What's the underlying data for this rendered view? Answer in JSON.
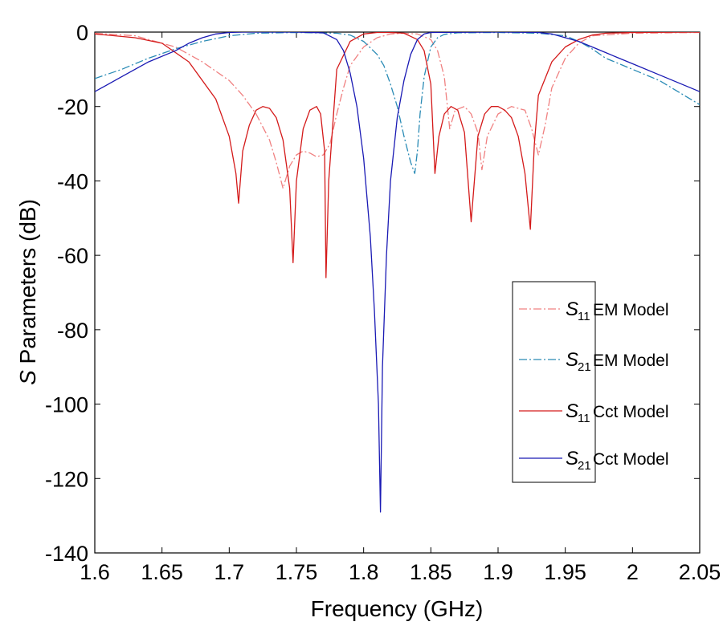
{
  "chart_data": {
    "type": "line",
    "title": "",
    "xlabel": "Frequency (GHz)",
    "ylabel_symbol": "S",
    "ylabel_rest": " Parameters (dB)",
    "xlim": [
      1.6,
      2.05
    ],
    "ylim": [
      -140,
      0
    ],
    "xticks": [
      1.6,
      1.65,
      1.7,
      1.75,
      1.8,
      1.85,
      1.9,
      1.95,
      2,
      2.05
    ],
    "xtick_labels": [
      "1.6",
      "1.65",
      "1.7",
      "1.75",
      "1.8",
      "1.85",
      "1.9",
      "1.95",
      "2",
      "2.05"
    ],
    "yticks": [
      0,
      -20,
      -40,
      -60,
      -80,
      -100,
      -120,
      -140
    ],
    "ytick_labels": [
      "0",
      "-20",
      "-40",
      "-60",
      "-80",
      "-100",
      "-120",
      "-140"
    ],
    "grid": false,
    "legend_position": "right",
    "series": [
      {
        "name": "S11 EM Model",
        "sym": "S",
        "sub": "11",
        "label": "EM Model",
        "color": "#f08080",
        "dash": "10,3,2,3",
        "x": [
          1.6,
          1.63,
          1.66,
          1.68,
          1.7,
          1.71,
          1.72,
          1.73,
          1.735,
          1.74,
          1.745,
          1.75,
          1.755,
          1.76,
          1.765,
          1.77,
          1.775,
          1.78,
          1.785,
          1.79,
          1.8,
          1.81,
          1.82,
          1.83,
          1.84,
          1.85,
          1.855,
          1.86,
          1.864,
          1.868,
          1.875,
          1.88,
          1.885,
          1.888,
          1.892,
          1.9,
          1.91,
          1.92,
          1.925,
          1.93,
          1.935,
          1.94,
          1.95,
          1.96,
          1.97,
          2.0,
          2.05
        ],
        "y": [
          -0.3,
          -1,
          -4,
          -8,
          -13,
          -17,
          -22,
          -29,
          -35,
          -42,
          -36,
          -33,
          -32,
          -32.5,
          -33.5,
          -33,
          -30,
          -22,
          -15,
          -9,
          -4,
          -1.5,
          -0.5,
          -0.3,
          -0.5,
          -2,
          -5,
          -12,
          -26,
          -21,
          -20,
          -22,
          -27,
          -37,
          -28,
          -22,
          -20,
          -21,
          -26,
          -33,
          -25,
          -15,
          -7,
          -3,
          -1,
          -0.3,
          -0.1
        ]
      },
      {
        "name": "S21 EM Model",
        "sym": "S",
        "sub": "21",
        "label": "EM Model",
        "color": "#2a8bb5",
        "dash": "10,3,2,3",
        "x": [
          1.6,
          1.62,
          1.64,
          1.66,
          1.68,
          1.7,
          1.72,
          1.75,
          1.78,
          1.79,
          1.8,
          1.81,
          1.815,
          1.82,
          1.825,
          1.83,
          1.835,
          1.838,
          1.84,
          1.842,
          1.845,
          1.85,
          1.855,
          1.86,
          1.87,
          1.9,
          1.93,
          1.95,
          1.96,
          1.97,
          1.98,
          1.99,
          2.0,
          2.02,
          2.05
        ],
        "y": [
          -12.5,
          -10,
          -7,
          -4.5,
          -2.5,
          -1,
          -0.3,
          -0.1,
          -0.3,
          -0.8,
          -2.5,
          -6,
          -9,
          -14,
          -20,
          -28,
          -35,
          -38,
          -32,
          -22,
          -12,
          -4,
          -1.5,
          -0.6,
          -0.2,
          -0.1,
          -0.3,
          -1,
          -2.5,
          -4.5,
          -7,
          -8.5,
          -10,
          -13,
          -19.5
        ]
      },
      {
        "name": "S11 Cct Model",
        "sym": "S",
        "sub": "11",
        "label": "Cct Model",
        "color": "#d41a1a",
        "dash": "",
        "x": [
          1.6,
          1.63,
          1.65,
          1.67,
          1.69,
          1.7,
          1.705,
          1.707,
          1.71,
          1.715,
          1.72,
          1.725,
          1.73,
          1.735,
          1.74,
          1.745,
          1.7475,
          1.75,
          1.755,
          1.76,
          1.765,
          1.768,
          1.771,
          1.772,
          1.774,
          1.78,
          1.79,
          1.8,
          1.81,
          1.82,
          1.83,
          1.84,
          1.845,
          1.85,
          1.853,
          1.856,
          1.86,
          1.865,
          1.87,
          1.875,
          1.88,
          1.885,
          1.89,
          1.895,
          1.9,
          1.905,
          1.91,
          1.915,
          1.92,
          1.924,
          1.927,
          1.93,
          1.94,
          1.95,
          1.96,
          1.97,
          1.98,
          2.0,
          2.05
        ],
        "y": [
          -0.5,
          -1.5,
          -3,
          -8,
          -18,
          -28,
          -38,
          -46,
          -32,
          -25,
          -21,
          -20,
          -20.5,
          -23,
          -29,
          -42,
          -62,
          -40,
          -26,
          -21,
          -20,
          -22,
          -32,
          -66,
          -40,
          -10,
          -2.5,
          -0.5,
          -0.1,
          -0.1,
          -0.3,
          -2,
          -5,
          -14,
          -38,
          -28,
          -22,
          -20,
          -21,
          -27,
          -51,
          -28,
          -22,
          -20,
          -20,
          -21,
          -23,
          -28,
          -38,
          -53,
          -30,
          -17,
          -8,
          -4,
          -2,
          -0.8,
          -0.3,
          -0.1,
          0
        ]
      },
      {
        "name": "S21 Cct Model",
        "sym": "S",
        "sub": "21",
        "label": "Cct Model",
        "color": "#1a1ab4",
        "dash": "",
        "x": [
          1.6,
          1.62,
          1.64,
          1.66,
          1.67,
          1.68,
          1.69,
          1.7,
          1.71,
          1.75,
          1.77,
          1.78,
          1.785,
          1.79,
          1.795,
          1.8,
          1.805,
          1.808,
          1.811,
          1.8125,
          1.814,
          1.817,
          1.82,
          1.825,
          1.83,
          1.835,
          1.84,
          1.845,
          1.85,
          1.9,
          1.93,
          1.94,
          1.95,
          1.96,
          1.97,
          1.98,
          1.99,
          2.0,
          2.02,
          2.05
        ],
        "y": [
          -16,
          -12,
          -8,
          -5,
          -3,
          -1.5,
          -0.5,
          -0.1,
          0,
          0,
          -0.2,
          -2,
          -5,
          -11,
          -20,
          -34,
          -55,
          -75,
          -100,
          -129,
          -90,
          -60,
          -40,
          -23,
          -13,
          -6,
          -2,
          -0.5,
          -0.1,
          0,
          -0.1,
          -0.5,
          -1.5,
          -2.5,
          -4,
          -5.5,
          -7,
          -8.5,
          -11.5,
          -16
        ]
      }
    ]
  }
}
